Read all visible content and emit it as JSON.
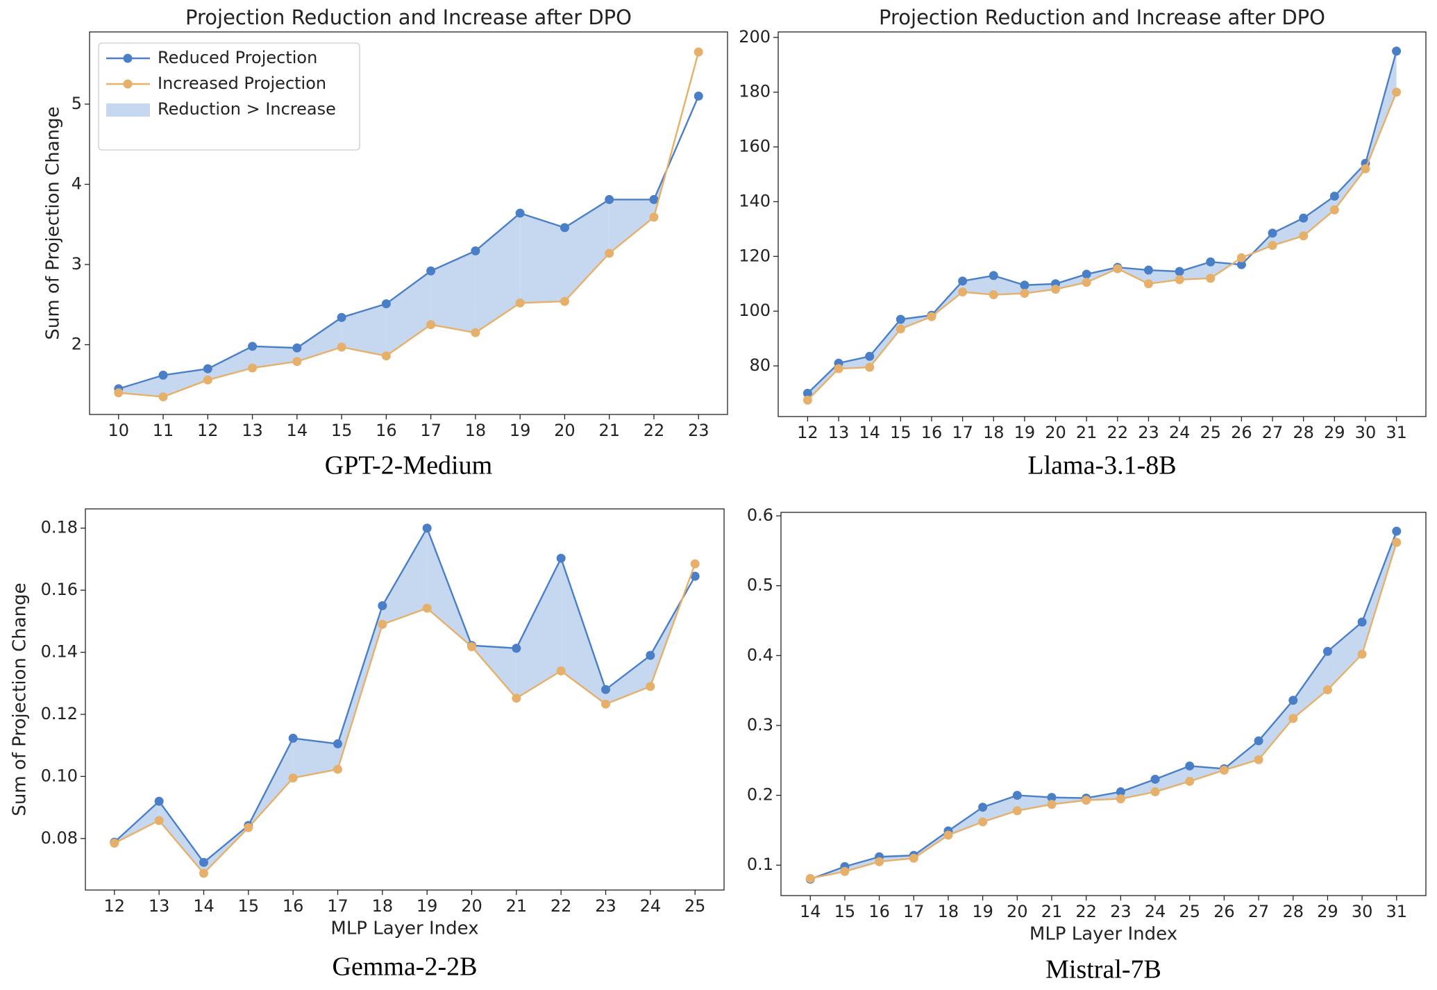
{
  "chart_data": [
    {
      "type": "line",
      "title": "Projection Reduction and Increase after DPO",
      "ylabel": "Sum of Projection Change",
      "caption": "GPT-2-Medium",
      "x": [
        10,
        11,
        12,
        13,
        14,
        15,
        16,
        17,
        18,
        19,
        20,
        21,
        22,
        23
      ],
      "xlim": [
        9.35,
        23.65
      ],
      "xticks": [
        10,
        11,
        12,
        13,
        14,
        15,
        16,
        17,
        18,
        19,
        20,
        21,
        22,
        23
      ],
      "ylim": [
        1.13,
        5.9
      ],
      "yticks": [
        2,
        3,
        4,
        5
      ],
      "series": [
        {
          "name": "Reduced Projection",
          "color": "#4a7fc8",
          "values": [
            1.45,
            1.62,
            1.7,
            1.98,
            1.96,
            2.34,
            2.51,
            2.92,
            3.17,
            3.64,
            3.46,
            3.81,
            3.81,
            5.1
          ]
        },
        {
          "name": "Increased Projection",
          "color": "#e6b06a",
          "values": [
            1.4,
            1.35,
            1.56,
            1.71,
            1.79,
            1.97,
            1.86,
            2.25,
            2.15,
            2.52,
            2.54,
            3.14,
            3.59,
            5.65
          ]
        }
      ],
      "fill_label": "Reduction > Increase",
      "fill_color": "#c5d8f0",
      "legend": "upper left"
    },
    {
      "type": "line",
      "title": "Projection Reduction and Increase after DPO",
      "caption": "Llama-3.1-8B",
      "x": [
        12,
        13,
        14,
        15,
        16,
        17,
        18,
        19,
        20,
        21,
        22,
        23,
        24,
        25,
        26,
        27,
        28,
        29,
        30,
        31
      ],
      "xlim": [
        11.05,
        31.95
      ],
      "xticks": [
        12,
        13,
        14,
        15,
        16,
        17,
        18,
        19,
        20,
        21,
        22,
        23,
        24,
        25,
        26,
        27,
        28,
        29,
        30,
        31
      ],
      "ylim": [
        61.5,
        202
      ],
      "yticks": [
        80,
        100,
        120,
        140,
        160,
        180,
        200
      ],
      "series": [
        {
          "color": "#4a7fc8",
          "values": [
            70,
            81,
            83.5,
            97,
            98.5,
            111,
            113,
            109.5,
            110,
            113.5,
            116,
            115,
            114.5,
            118,
            117,
            128.5,
            134,
            142,
            154,
            195
          ]
        },
        {
          "color": "#e6b06a",
          "values": [
            67.5,
            79,
            79.5,
            93.5,
            98,
            107,
            106,
            106.5,
            108,
            110.5,
            115.5,
            110,
            111.5,
            112,
            119.5,
            124,
            127.5,
            137,
            152,
            180
          ]
        }
      ],
      "fill_color": "#c5d8f0"
    },
    {
      "type": "line",
      "ylabel": "Sum of Projection Change",
      "xlabel": "MLP Layer Index",
      "caption": "Gemma-2-2B",
      "x": [
        12,
        13,
        14,
        15,
        16,
        17,
        18,
        19,
        20,
        21,
        22,
        23,
        24,
        25
      ],
      "xlim": [
        11.35,
        25.65
      ],
      "xticks": [
        12,
        13,
        14,
        15,
        16,
        17,
        18,
        19,
        20,
        21,
        22,
        23,
        24,
        25
      ],
      "ylim": [
        0.0634,
        0.1862
      ],
      "yticks": [
        {
          "value": 0.08,
          "label": "0.08"
        },
        {
          "value": 0.1,
          "label": "0.10"
        },
        {
          "value": 0.12,
          "label": "0.12"
        },
        {
          "value": 0.14,
          "label": "0.14"
        },
        {
          "value": 0.16,
          "label": "0.16"
        },
        {
          "value": 0.18,
          "label": "0.18"
        }
      ],
      "series": [
        {
          "color": "#4a7fc8",
          "values": [
            0.0788,
            0.092,
            0.0723,
            0.0842,
            0.1123,
            0.1105,
            0.155,
            0.18,
            0.1422,
            0.1413,
            0.1703,
            0.128,
            0.139,
            0.1645
          ]
        },
        {
          "color": "#e6b06a",
          "values": [
            0.0785,
            0.0858,
            0.0688,
            0.0835,
            0.0995,
            0.1023,
            0.149,
            0.1542,
            0.1418,
            0.1252,
            0.134,
            0.1233,
            0.129,
            0.1685
          ]
        }
      ],
      "fill_color": "#c5d8f0"
    },
    {
      "type": "line",
      "xlabel": "MLP Layer Index",
      "caption": "Mistral-7B",
      "x": [
        14,
        15,
        16,
        17,
        18,
        19,
        20,
        21,
        22,
        23,
        24,
        25,
        26,
        27,
        28,
        29,
        30,
        31
      ],
      "xlim": [
        13.15,
        31.85
      ],
      "xticks": [
        14,
        15,
        16,
        17,
        18,
        19,
        20,
        21,
        22,
        23,
        24,
        25,
        26,
        27,
        28,
        29,
        30,
        31
      ],
      "ylim": [
        0.0565,
        0.605
      ],
      "yticks": [
        0.1,
        0.2,
        0.3,
        0.4,
        0.5,
        0.6
      ],
      "series": [
        {
          "color": "#4a7fc8",
          "values": [
            0.08,
            0.098,
            0.112,
            0.114,
            0.149,
            0.183,
            0.2,
            0.197,
            0.196,
            0.205,
            0.223,
            0.242,
            0.238,
            0.278,
            0.336,
            0.406,
            0.448,
            0.578
          ]
        },
        {
          "color": "#e6b06a",
          "values": [
            0.081,
            0.091,
            0.105,
            0.11,
            0.143,
            0.162,
            0.178,
            0.187,
            0.193,
            0.195,
            0.205,
            0.22,
            0.236,
            0.251,
            0.31,
            0.351,
            0.402,
            0.562
          ]
        }
      ],
      "fill_color": "#c5d8f0"
    }
  ]
}
